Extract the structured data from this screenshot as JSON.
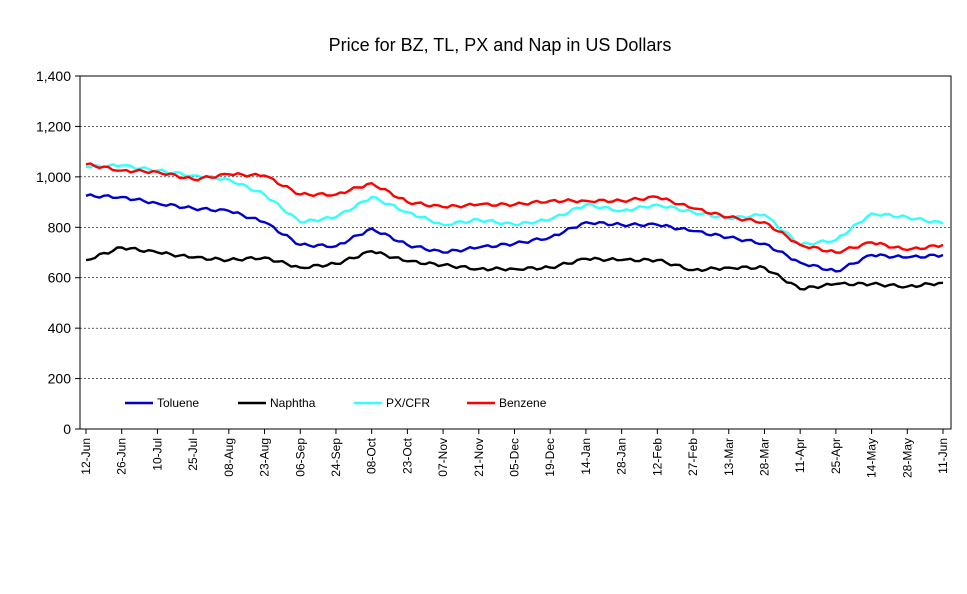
{
  "chart_data": {
    "type": "line",
    "title": "Price for BZ, TL, PX and Nap in US Dollars",
    "xlabel": "",
    "ylabel": "",
    "ylim": [
      0,
      1400
    ],
    "yticks": [
      0,
      200,
      400,
      600,
      800,
      1000,
      1200,
      1400
    ],
    "ytick_labels": [
      "0",
      "200",
      "400",
      "600",
      "800",
      "1,000",
      "1,200",
      "1,400"
    ],
    "grid": "horizontal dashed",
    "legend_position": "bottom-left inside plot",
    "x_categories": [
      "12-Jun",
      "26-Jun",
      "10-Jul",
      "25-Jul",
      "08-Aug",
      "23-Aug",
      "06-Sep",
      "24-Sep",
      "08-Oct",
      "23-Oct",
      "07-Nov",
      "21-Nov",
      "05-Dec",
      "19-Dec",
      "14-Jan",
      "28-Jan",
      "12-Feb",
      "27-Feb",
      "13-Mar",
      "28-Mar",
      "11-Apr",
      "25-Apr",
      "14-May",
      "28-May",
      "11-Jun"
    ],
    "series": [
      {
        "name": "Toluene",
        "color": "#0000cc",
        "values": [
          925,
          920,
          895,
          875,
          865,
          820,
          730,
          725,
          795,
          730,
          700,
          720,
          735,
          760,
          820,
          810,
          810,
          785,
          760,
          735,
          660,
          625,
          690,
          680,
          690
        ]
      },
      {
        "name": "Naphtha",
        "color": "#000000",
        "values": [
          670,
          720,
          700,
          680,
          670,
          680,
          640,
          655,
          705,
          665,
          650,
          635,
          635,
          640,
          675,
          670,
          670,
          630,
          640,
          640,
          555,
          575,
          575,
          565,
          580
        ]
      },
      {
        "name": "PX/CFR",
        "color": "#33ffff",
        "values": [
          1040,
          1045,
          1025,
          1005,
          990,
          930,
          820,
          840,
          920,
          860,
          810,
          830,
          810,
          830,
          890,
          865,
          890,
          860,
          835,
          850,
          730,
          750,
          855,
          840,
          815
        ]
      },
      {
        "name": "Benzene",
        "color": "#ff0000",
        "values": [
          1050,
          1025,
          1020,
          990,
          1010,
          1005,
          930,
          930,
          975,
          900,
          880,
          890,
          890,
          905,
          905,
          905,
          920,
          875,
          840,
          820,
          730,
          700,
          740,
          710,
          730
        ]
      }
    ]
  }
}
